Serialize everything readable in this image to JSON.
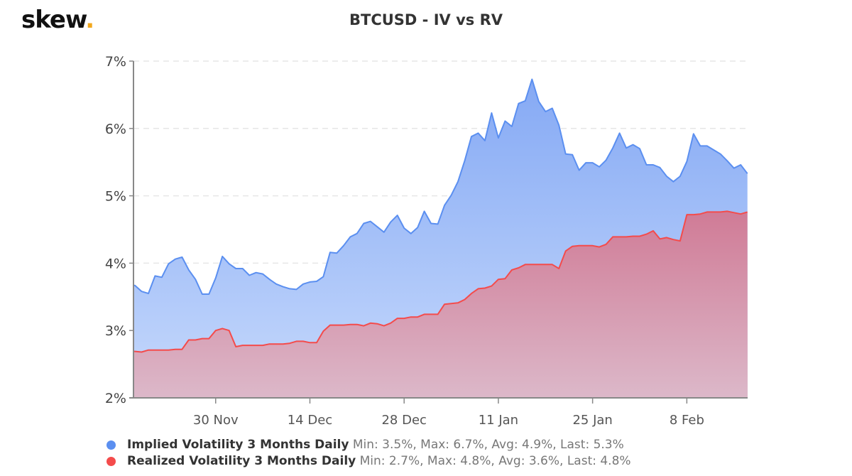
{
  "logo": {
    "text": "skew",
    "dot": "."
  },
  "chart_data": {
    "type": "area",
    "title": "BTCUSD - IV vs RV",
    "xlabel": "",
    "ylabel": "",
    "ylim": [
      2,
      7
    ],
    "yticks": [
      "2%",
      "3%",
      "4%",
      "5%",
      "6%",
      "7%"
    ],
    "xticks": [
      {
        "label": "30 Nov",
        "date": "30 Nov"
      },
      {
        "label": "14 Dec",
        "date": "14 Dec"
      },
      {
        "label": "28 Dec",
        "date": "28 Dec"
      },
      {
        "label": "11 Jan",
        "date": "11 Jan"
      },
      {
        "label": "25 Jan",
        "date": "25 Jan"
      },
      {
        "label": "8 Feb",
        "date": "8 Feb"
      }
    ],
    "x_range": [
      "18 Nov",
      "17 Feb"
    ],
    "grid": "horizontal dashed",
    "legend_placement": "bottom-left",
    "series": [
      {
        "name": "Implied Volatility 3 Months Daily",
        "stats": "Min: 3.5%, Max: 6.7%, Avg: 4.9%, Last: 5.3%",
        "color": "#5b8ff0",
        "values": [
          3.67,
          3.58,
          3.55,
          3.81,
          3.79,
          3.99,
          4.06,
          4.09,
          3.9,
          3.76,
          3.54,
          3.54,
          3.78,
          4.1,
          3.99,
          3.92,
          3.92,
          3.82,
          3.86,
          3.84,
          3.76,
          3.69,
          3.65,
          3.62,
          3.61,
          3.69,
          3.72,
          3.73,
          3.8,
          4.16,
          4.15,
          4.26,
          4.39,
          4.44,
          4.59,
          4.62,
          4.54,
          4.46,
          4.61,
          4.71,
          4.52,
          4.44,
          4.53,
          4.77,
          4.59,
          4.58,
          4.86,
          5.01,
          5.21,
          5.52,
          5.88,
          5.93,
          5.82,
          6.23,
          5.86,
          6.11,
          6.03,
          6.37,
          6.41,
          6.73,
          6.4,
          6.25,
          6.3,
          6.05,
          5.62,
          5.61,
          5.38,
          5.49,
          5.49,
          5.43,
          5.53,
          5.71,
          5.93,
          5.71,
          5.76,
          5.7,
          5.46,
          5.46,
          5.42,
          5.29,
          5.21,
          5.29,
          5.51,
          5.92,
          5.74,
          5.74,
          5.68,
          5.62,
          5.52,
          5.41,
          5.46,
          5.33
        ]
      },
      {
        "name": "Realized Volatility 3 Months Daily",
        "stats": "Min: 2.7%, Max: 4.8%, Avg: 3.6%, Last: 4.8%",
        "color": "#f44b4b",
        "values": [
          2.69,
          2.68,
          2.71,
          2.71,
          2.71,
          2.71,
          2.72,
          2.72,
          2.86,
          2.86,
          2.88,
          2.88,
          3.0,
          3.03,
          3.0,
          2.76,
          2.78,
          2.78,
          2.78,
          2.78,
          2.8,
          2.8,
          2.8,
          2.81,
          2.84,
          2.84,
          2.82,
          2.82,
          2.99,
          3.08,
          3.08,
          3.08,
          3.09,
          3.09,
          3.07,
          3.11,
          3.1,
          3.07,
          3.11,
          3.18,
          3.18,
          3.2,
          3.2,
          3.24,
          3.24,
          3.24,
          3.39,
          3.4,
          3.41,
          3.46,
          3.55,
          3.62,
          3.63,
          3.66,
          3.76,
          3.77,
          3.9,
          3.93,
          3.98,
          3.98,
          3.98,
          3.98,
          3.98,
          3.92,
          4.18,
          4.25,
          4.26,
          4.26,
          4.26,
          4.24,
          4.28,
          4.39,
          4.39,
          4.39,
          4.4,
          4.4,
          4.43,
          4.48,
          4.36,
          4.38,
          4.35,
          4.33,
          4.72,
          4.72,
          4.73,
          4.76,
          4.76,
          4.76,
          4.77,
          4.75,
          4.73,
          4.76
        ]
      }
    ]
  }
}
